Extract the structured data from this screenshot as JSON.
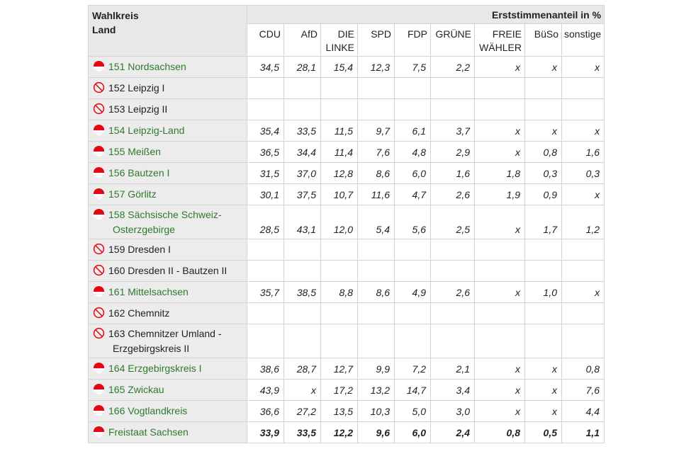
{
  "header": {
    "left_line1": "Wahlkreis",
    "left_line2": "Land",
    "title": "Erststimmenanteil in %",
    "columns": [
      [
        "CDU"
      ],
      [
        "AfD"
      ],
      [
        "DIE",
        "LINKE"
      ],
      [
        "SPD"
      ],
      [
        "FDP"
      ],
      [
        "GRÜNE"
      ],
      [
        "FREIE",
        "WÄHLER"
      ],
      [
        "BüSo"
      ],
      [
        "sonstige"
      ]
    ]
  },
  "colors": {
    "link": "#2d7a2d",
    "symbol_red": "#e30613",
    "header_bg": "#e8e8e8",
    "name_bg": "#ececec"
  },
  "rows": [
    {
      "name": [
        "151 Nordsachsen"
      ],
      "status": "result",
      "values": [
        "34,5",
        "28,1",
        "15,4",
        "12,3",
        "7,5",
        "2,2",
        "x",
        "x",
        "x"
      ]
    },
    {
      "name": [
        "152 Leipzig I"
      ],
      "status": "none",
      "values": []
    },
    {
      "name": [
        "153 Leipzig II"
      ],
      "status": "none",
      "values": []
    },
    {
      "name": [
        "154 Leipzig-Land"
      ],
      "status": "result",
      "values": [
        "35,4",
        "33,5",
        "11,5",
        "9,7",
        "6,1",
        "3,7",
        "x",
        "x",
        "x"
      ]
    },
    {
      "name": [
        "155 Meißen"
      ],
      "status": "result",
      "values": [
        "36,5",
        "34,4",
        "11,4",
        "7,6",
        "4,8",
        "2,9",
        "x",
        "0,8",
        "1,6"
      ]
    },
    {
      "name": [
        "156 Bautzen I"
      ],
      "status": "result",
      "values": [
        "31,5",
        "37,0",
        "12,8",
        "8,6",
        "6,0",
        "1,6",
        "1,8",
        "0,3",
        "0,3"
      ]
    },
    {
      "name": [
        "157 Görlitz"
      ],
      "status": "result",
      "values": [
        "30,1",
        "37,5",
        "10,7",
        "11,6",
        "4,7",
        "2,6",
        "1,9",
        "0,9",
        "x"
      ]
    },
    {
      "name": [
        "158 Sächsische Schweiz-",
        "Osterzgebirge"
      ],
      "status": "result",
      "values": [
        "28,5",
        "43,1",
        "12,0",
        "5,4",
        "5,6",
        "2,5",
        "x",
        "1,7",
        "1,2"
      ]
    },
    {
      "name": [
        "159 Dresden I"
      ],
      "status": "none",
      "values": []
    },
    {
      "name": [
        "160 Dresden II - Bautzen II"
      ],
      "status": "none",
      "values": []
    },
    {
      "name": [
        "161 Mittelsachsen"
      ],
      "status": "result",
      "values": [
        "35,7",
        "38,5",
        "8,8",
        "8,6",
        "4,9",
        "2,6",
        "x",
        "1,0",
        "x"
      ]
    },
    {
      "name": [
        "162 Chemnitz"
      ],
      "status": "none",
      "values": []
    },
    {
      "name": [
        "163 Chemnitzer Umland -",
        "Erzgebirgskreis II"
      ],
      "status": "none",
      "values": []
    },
    {
      "name": [
        "164 Erzgebirgskreis I"
      ],
      "status": "result",
      "values": [
        "38,6",
        "28,7",
        "12,7",
        "9,9",
        "7,2",
        "2,1",
        "x",
        "x",
        "0,8"
      ]
    },
    {
      "name": [
        "165 Zwickau"
      ],
      "status": "result",
      "values": [
        "43,9",
        "x",
        "17,2",
        "13,2",
        "14,7",
        "3,4",
        "x",
        "x",
        "7,6"
      ]
    },
    {
      "name": [
        "166 Vogtlandkreis"
      ],
      "status": "result",
      "values": [
        "36,6",
        "27,2",
        "13,5",
        "10,3",
        "5,0",
        "3,0",
        "x",
        "x",
        "4,4"
      ]
    },
    {
      "name": [
        "Freistaat Sachsen"
      ],
      "status": "result",
      "total": true,
      "values": [
        "33,9",
        "33,5",
        "12,2",
        "9,6",
        "6,0",
        "2,4",
        "0,8",
        "0,5",
        "1,1"
      ]
    }
  ]
}
